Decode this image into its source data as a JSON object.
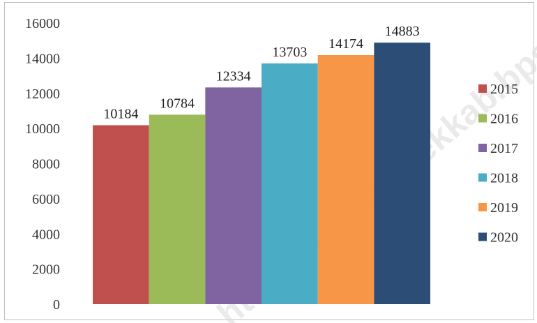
{
  "watermark": "https://trenggalekkab.bps.go.id",
  "chart_data": {
    "type": "bar",
    "categories": [
      "2015",
      "2016",
      "2017",
      "2018",
      "2019",
      "2020"
    ],
    "values": [
      10184,
      10784,
      12334,
      13703,
      14174,
      14883
    ],
    "colors": [
      "#c0504d",
      "#9bbb59",
      "#8064a2",
      "#4bacc6",
      "#f79646",
      "#2c4d75"
    ],
    "ylim": [
      0,
      16000
    ],
    "yticks": [
      0,
      2000,
      4000,
      6000,
      8000,
      10000,
      12000,
      14000,
      16000
    ],
    "grid": false,
    "legend": "right",
    "title": "",
    "xlabel": "",
    "ylabel": ""
  }
}
